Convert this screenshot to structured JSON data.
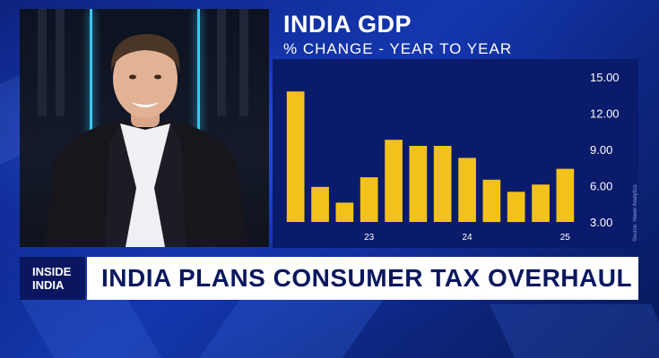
{
  "lower_third": {
    "bug_line1": "INSIDE",
    "bug_line2": "INDIA",
    "headline": "INDIA PLANS CONSUMER TAX OVERHAUL"
  },
  "chart_data": {
    "type": "bar",
    "title": "INDIA GDP",
    "subtitle": "% CHANGE - YEAR TO YEAR",
    "values": [
      13.8,
      5.9,
      4.6,
      6.7,
      9.8,
      9.3,
      9.3,
      8.3,
      6.5,
      5.5,
      6.1,
      7.4
    ],
    "x_tick_labels": [
      {
        "label": "23",
        "index": 3.5
      },
      {
        "label": "24",
        "index": 7.5
      },
      {
        "label": "25",
        "index": 11.5
      }
    ],
    "yticks": [
      "15.00",
      "12.00",
      "9.00",
      "6.00",
      "3.00"
    ],
    "ylim": [
      3,
      15
    ],
    "axis_position": "right",
    "grid": false,
    "bar_color": "#f2c21a",
    "source": "Source: Haver Analytics"
  }
}
